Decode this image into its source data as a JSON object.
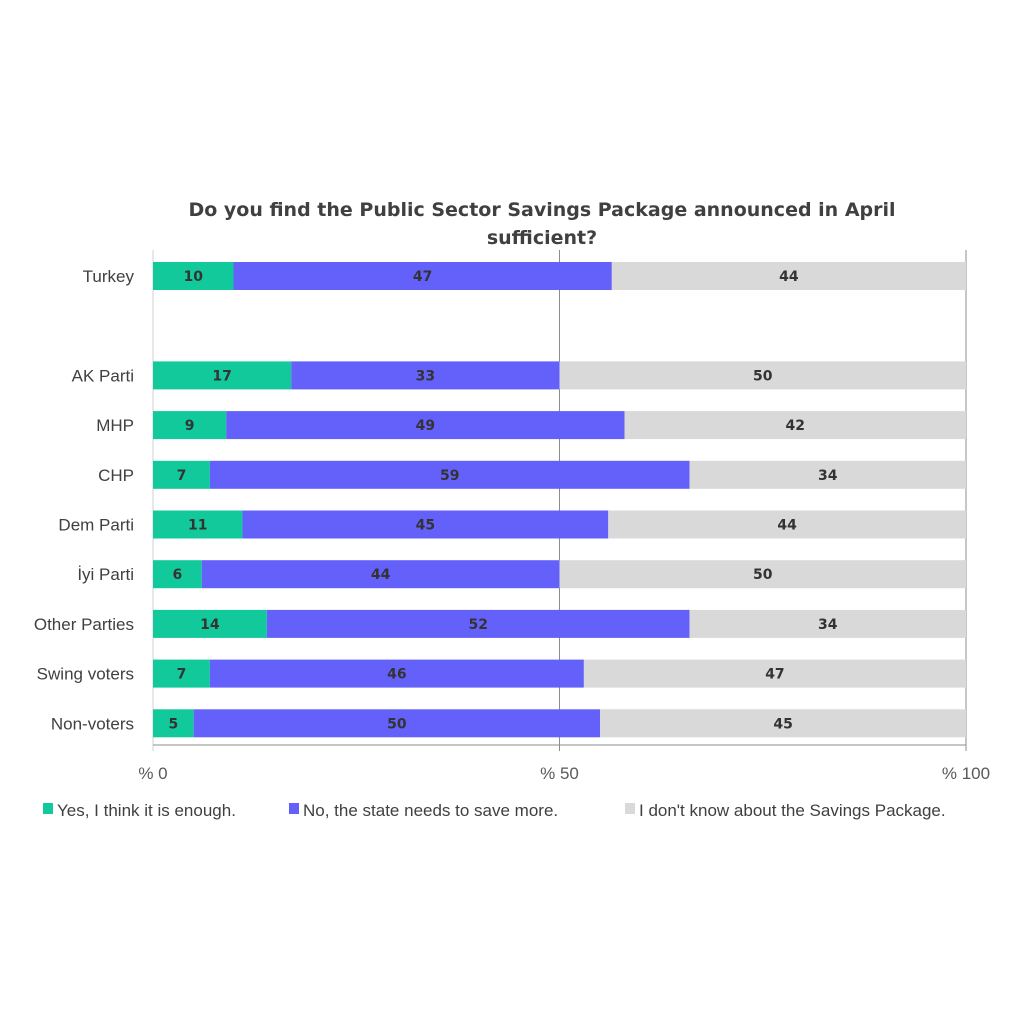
{
  "chart_data": {
    "type": "bar",
    "orientation": "horizontal",
    "stacked": "100%",
    "title": "Do you find the Public Sector Savings Package announced in April sufficient?",
    "title_lines": [
      "Do you find the Public Sector Savings Package announced in April",
      "sufficient?"
    ],
    "categories": [
      "Turkey",
      "",
      "AK Parti",
      "MHP",
      "CHP",
      "Dem Parti",
      "İyi Parti",
      "Other Parties",
      "Swing voters",
      "Non-voters"
    ],
    "series": [
      {
        "name": "Yes, I think it is enough.",
        "color": "#12C99B",
        "values": [
          10,
          null,
          17,
          9,
          7,
          11,
          6,
          14,
          7,
          5
        ]
      },
      {
        "name": "No, the state needs to save more.",
        "color": "#6461FB",
        "values": [
          47,
          null,
          33,
          49,
          59,
          45,
          44,
          52,
          46,
          50
        ]
      },
      {
        "name": "I don't know about the Savings Package.",
        "color": "#D9D9D9",
        "values": [
          44,
          null,
          50,
          42,
          34,
          44,
          50,
          34,
          47,
          45
        ]
      }
    ],
    "xlim": [
      0,
      100
    ],
    "xticks": [
      0,
      50,
      100
    ],
    "xtick_labels": [
      "% 0",
      "% 50",
      "% 100"
    ],
    "xlabel": "",
    "ylabel": "",
    "grid": "vertical major",
    "legend": "bottom"
  }
}
